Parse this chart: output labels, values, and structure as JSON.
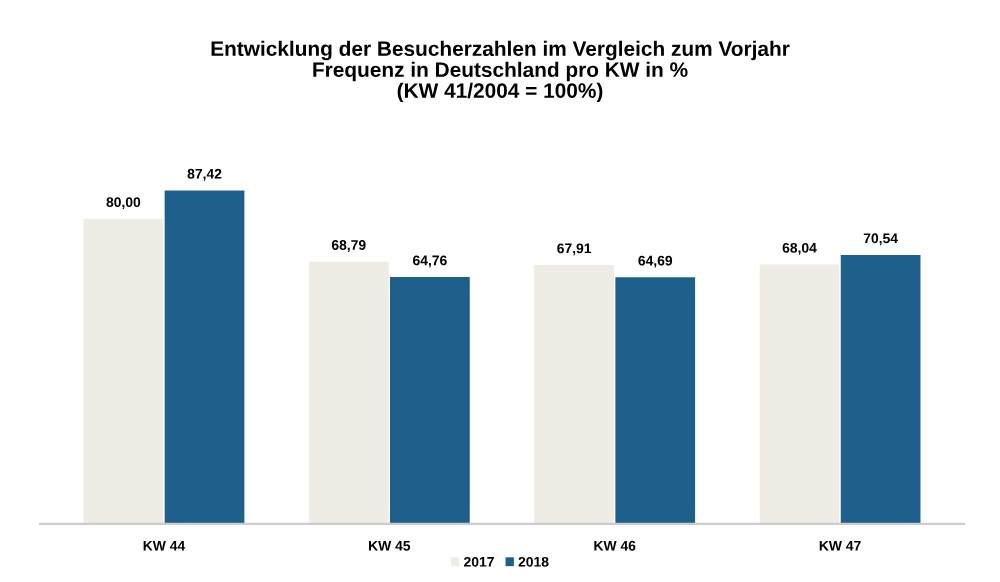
{
  "chart_data": {
    "type": "bar",
    "title": "Entwicklung der Besucherzahlen im Vergleich zum Vorjahr\nFrequenz in Deutschland pro KW in %\n(KW 41/2004 = 100%)",
    "categories": [
      "KW 44",
      "KW 45",
      "KW 46",
      "KW 47"
    ],
    "series": [
      {
        "name": "2017",
        "color": "#efece6",
        "values": [
          80.0,
          68.79,
          67.91,
          68.04
        ],
        "value_labels": [
          "80,00",
          "68,79",
          "67,91",
          "68,04"
        ]
      },
      {
        "name": "2018",
        "color": "#1f5f8b",
        "values": [
          87.42,
          64.76,
          64.69,
          70.54
        ],
        "value_labels": [
          "87,42",
          "64,76",
          "64,69",
          "70,54"
        ]
      }
    ],
    "legend": "bottom"
  }
}
